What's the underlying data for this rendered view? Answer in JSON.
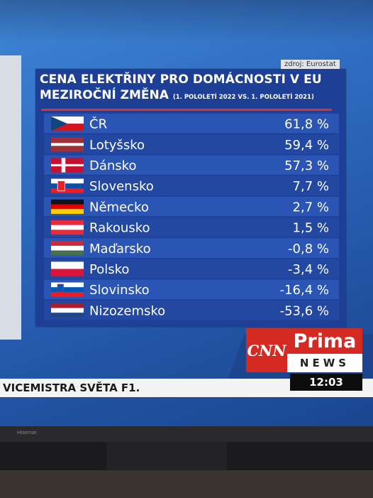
{
  "header": {
    "source": "zdroj: Eurostat",
    "title_line1": "CENA ELEKTŘINY PRO DOMÁCNOSTI V EU",
    "title_line2": "MEZIROČNÍ ZMĚNA",
    "subtitle": "(1. POLOLETÍ 2022 VS. 1. POLOLETÍ 2021)"
  },
  "chart_data": {
    "type": "table",
    "columns": [
      "country",
      "change_percent"
    ],
    "rows": [
      {
        "country": "ČR",
        "value": 61.8,
        "label": "61,8 %",
        "flag": "czech-flag-icon"
      },
      {
        "country": "Lotyšsko",
        "value": 59.4,
        "label": "59,4 %",
        "flag": "latvia-flag-icon"
      },
      {
        "country": "Dánsko",
        "value": 57.3,
        "label": "57,3 %",
        "flag": "denmark-flag-icon"
      },
      {
        "country": "Slovensko",
        "value": 7.7,
        "label": "7,7 %",
        "flag": "slovakia-flag-icon"
      },
      {
        "country": "Německo",
        "value": 2.7,
        "label": "2,7 %",
        "flag": "germany-flag-icon"
      },
      {
        "country": "Rakousko",
        "value": 1.5,
        "label": "1,5 %",
        "flag": "austria-flag-icon"
      },
      {
        "country": "Maďarsko",
        "value": -0.8,
        "label": "-0,8 %",
        "flag": "hungary-flag-icon"
      },
      {
        "country": "Polsko",
        "value": -3.4,
        "label": "-3,4 %",
        "flag": "poland-flag-icon"
      },
      {
        "country": "Slovinsko",
        "value": -16.4,
        "label": "-16,4 %",
        "flag": "slovenia-flag-icon"
      },
      {
        "country": "Nizozemsko",
        "value": -53.6,
        "label": "-53,6 %",
        "flag": "netherlands-flag-icon"
      }
    ]
  },
  "broadcast": {
    "ticker_text": "VICEMISTRA SVĚTA F1.",
    "logo_cnn": "CNN",
    "logo_prima": "Prima",
    "logo_news": "NEWS",
    "time": "12:03",
    "tv_brand": "Hisense"
  },
  "colors": {
    "panel": "#1d3f96",
    "row_a": "#2a55b4",
    "row_b": "#2248a2",
    "accent_red": "#e0302d",
    "logo_red": "#d42a22"
  }
}
